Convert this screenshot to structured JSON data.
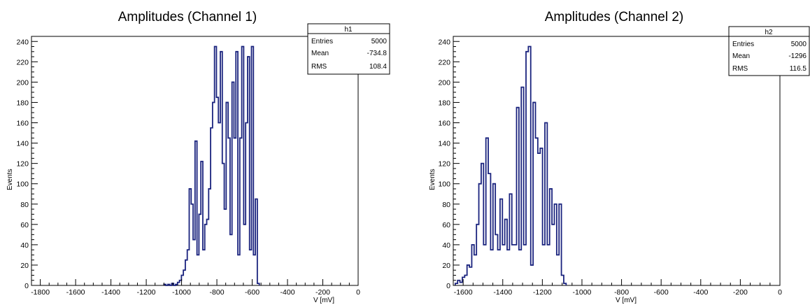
{
  "chart_data": [
    {
      "type": "histogram",
      "title": "Amplitudes (Channel 1)",
      "xlabel": "V [mV]",
      "ylabel": "Events",
      "xlim": [
        -1850,
        0
      ],
      "ylim": [
        0,
        245
      ],
      "grid": false,
      "x_ticks": [
        -1800,
        -1600,
        -1400,
        -1200,
        -1000,
        -800,
        -600,
        -400,
        -200,
        0
      ],
      "x_tick_labels": [
        "-1800",
        "-1600",
        "-1400",
        "-1200",
        "-1000",
        "-800",
        "-600",
        "-400",
        "-200",
        "0"
      ],
      "y_ticks": [
        0,
        20,
        40,
        60,
        80,
        100,
        120,
        140,
        160,
        180,
        200,
        220,
        240
      ],
      "line_color": "#1a237e",
      "series": [
        {
          "bin_edges": [
            -1100,
            -560
          ],
          "counts": [
            1,
            0,
            1,
            0,
            2,
            0,
            1,
            3,
            5,
            10,
            15,
            25,
            35,
            95,
            80,
            45,
            142,
            30,
            70,
            122,
            35,
            60,
            65,
            95,
            155,
            180,
            235,
            185,
            160,
            230,
            120,
            75,
            180,
            145,
            50,
            200,
            145,
            230,
            30,
            145,
            235,
            60,
            160,
            225,
            35,
            235,
            30,
            85,
            2
          ]
        }
      ],
      "stats": {
        "name": "h1",
        "rows": [
          {
            "label": "Entries",
            "value": "5000"
          },
          {
            "label": "Mean",
            "value": "-734.8"
          },
          {
            "label": "RMS",
            "value": "108.4"
          }
        ]
      }
    },
    {
      "type": "histogram",
      "title": "Amplitudes (Channel 2)",
      "xlabel": "V [mV]",
      "ylabel": "Events",
      "xlim": [
        -1650,
        0
      ],
      "ylim": [
        0,
        245
      ],
      "grid": false,
      "x_ticks": [
        -1600,
        -1400,
        -1200,
        -1000,
        -800,
        -600,
        -400,
        -200,
        0
      ],
      "x_tick_labels": [
        "-1600",
        "-1400",
        "-1200",
        "-1000",
        "-800",
        "-600",
        "-400",
        "-200",
        "0"
      ],
      "y_ticks": [
        0,
        20,
        40,
        60,
        80,
        100,
        120,
        140,
        160,
        180,
        200,
        220,
        240
      ],
      "line_color": "#1a237e",
      "series": [
        {
          "bin_edges": [
            -1640,
            -1080
          ],
          "counts": [
            2,
            5,
            3,
            8,
            10,
            20,
            18,
            40,
            30,
            60,
            100,
            120,
            40,
            145,
            110,
            35,
            100,
            50,
            35,
            85,
            40,
            65,
            35,
            90,
            40,
            40,
            175,
            35,
            195,
            40,
            230,
            235,
            20,
            180,
            145,
            130,
            135,
            40,
            160,
            40,
            95,
            60,
            80,
            30,
            80,
            10,
            2
          ]
        }
      ],
      "stats": {
        "name": "h2",
        "rows": [
          {
            "label": "Entries",
            "value": "5000"
          },
          {
            "label": "Mean",
            "value": "-1296"
          },
          {
            "label": "RMS",
            "value": "116.5"
          }
        ]
      }
    }
  ]
}
